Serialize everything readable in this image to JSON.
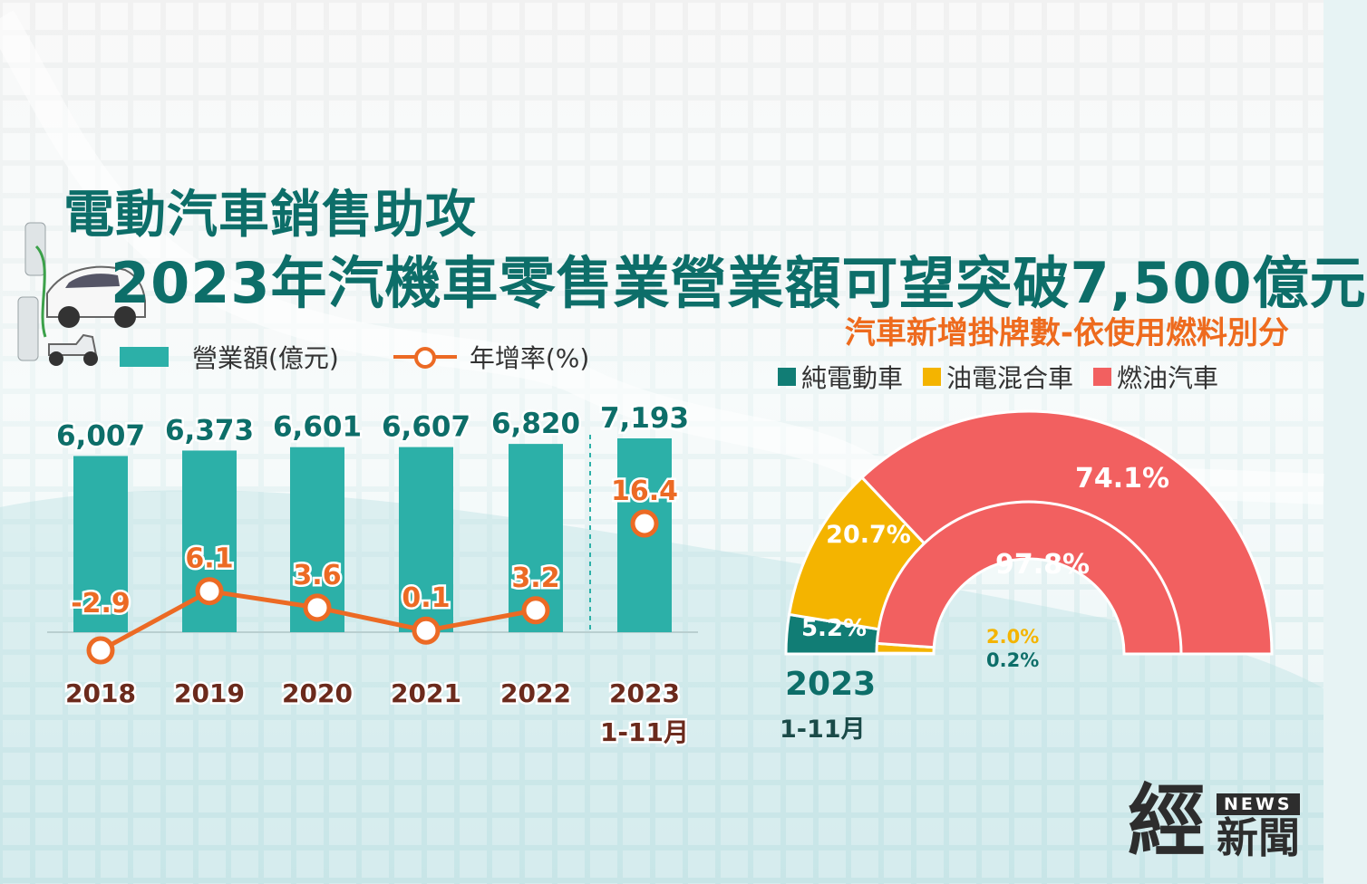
{
  "title_line1": "電動汽車銷售助攻",
  "title_line2": "2023年汽機車零售業營業額可望突破7,500億元",
  "subtitle": "汽車新增掛牌數-依使用燃料別分",
  "legend_left": {
    "bar": "營業額(億元)",
    "line": "年增率(%)"
  },
  "legend_right": [
    "純電動車",
    "油電混合車",
    "燃油汽車"
  ],
  "colors": {
    "teal": "#2cb0a8",
    "orange": "#ec6a24",
    "dark_teal": "#117d75",
    "yellow": "#f4b400",
    "red": "#f26060",
    "title": "#0d6e69"
  },
  "donut_year": "2023",
  "donut_period": "1-11月",
  "logo": {
    "big": "經",
    "news": "NEWS",
    "small": "新聞"
  },
  "chart_data": [
    {
      "type": "bar",
      "categories": [
        "2018",
        "2019",
        "2020",
        "2021",
        "2022",
        "2023"
      ],
      "category_sub": [
        "",
        "",
        "",
        "",
        "",
        "1-11月"
      ],
      "series": [
        {
          "name": "營業額(億元)",
          "values": [
            6007,
            6373,
            6601,
            6607,
            6820,
            7193
          ],
          "labels": [
            "6,007",
            "6,373",
            "6,601",
            "6,607",
            "6,820",
            "7,193"
          ]
        },
        {
          "name": "年增率(%)",
          "type": "line",
          "values": [
            -2.9,
            6.1,
            3.6,
            0.1,
            3.2,
            16.4
          ],
          "labels": [
            "-2.9",
            "6.1",
            "3.6",
            "0.1",
            "3.2",
            "16.4"
          ]
        }
      ]
    },
    {
      "type": "pie",
      "style": "half-donut",
      "categories": [
        "純電動車",
        "油電混合車",
        "燃油汽車"
      ],
      "rings": [
        {
          "values": [
            5.2,
            20.7,
            74.1
          ],
          "labels": [
            "5.2%",
            "20.7%",
            "74.1%"
          ]
        },
        {
          "values": [
            0.2,
            2.0,
            97.8
          ],
          "labels": [
            "0.2%",
            "2.0%",
            "97.8%"
          ]
        }
      ]
    }
  ]
}
